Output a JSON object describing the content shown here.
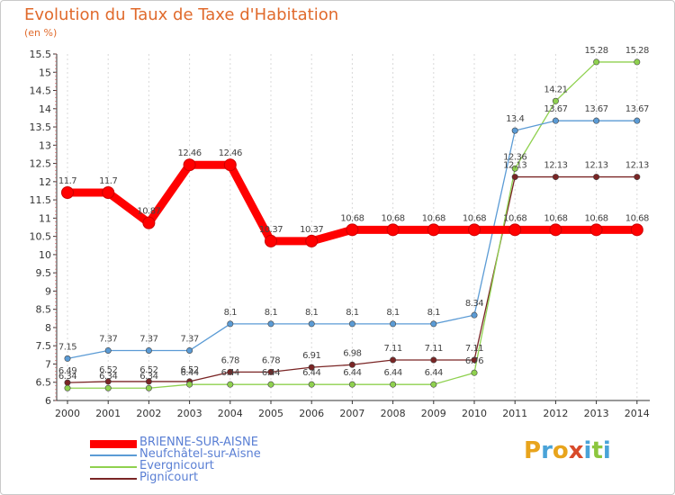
{
  "title": "Evolution du Taux de Taxe d'Habitation",
  "unit_label": "(en %)",
  "brand": {
    "letters": [
      "P",
      "r",
      "o",
      "x",
      "i",
      "t",
      "i"
    ],
    "colors": [
      "#e8a41c",
      "#4aa3d8",
      "#e8a41c",
      "#d84a2a",
      "#4aa3d8",
      "#8cc63e",
      "#4aa3d8"
    ]
  },
  "chart_data": {
    "type": "line",
    "title": "Evolution du Taux de Taxe d'Habitation",
    "ylabel": "(en %)",
    "xlabel": "",
    "x": [
      "2000",
      "2001",
      "2002",
      "2003",
      "2004",
      "2005",
      "2006",
      "2007",
      "2008",
      "2009",
      "2010",
      "2011",
      "2012",
      "2013",
      "2014"
    ],
    "ylim": [
      6,
      15.5
    ],
    "yticks": [
      "6",
      "6.5",
      "7",
      "7.5",
      "8",
      "8.5",
      "9",
      "9.5",
      "10",
      "10.5",
      "11",
      "11.5",
      "12",
      "12.5",
      "13",
      "13.5",
      "14",
      "14.5",
      "15",
      "15.5"
    ],
    "grid": "vertical dashed",
    "legend_position": "bottom-left",
    "series": [
      {
        "name": "BRIENNE-SUR-AISNE",
        "color": "#ff0000",
        "line_width": 9,
        "values": [
          11.7,
          11.7,
          10.87,
          12.46,
          12.46,
          10.37,
          10.37,
          10.68,
          10.68,
          10.68,
          10.68,
          10.68,
          10.68,
          10.68,
          10.68
        ],
        "labels": [
          "11.7",
          "11.7",
          "10.87",
          "12.46",
          "12.46",
          "10.37",
          "10.37",
          "10.68",
          "10.68",
          "10.68",
          "10.68",
          "10.68",
          "10.68",
          "10.68",
          "10.68"
        ]
      },
      {
        "name": "Neufchâtel-sur-Aisne",
        "color": "#5b9bd5",
        "line_width": 1.3,
        "values": [
          7.15,
          7.37,
          7.37,
          7.37,
          8.1,
          8.1,
          8.1,
          8.1,
          8.1,
          8.1,
          8.34,
          13.4,
          13.67,
          13.67,
          13.67
        ],
        "labels": [
          "7.15",
          "7.37",
          "7.37",
          "7.37",
          "8.1",
          "8.1",
          "8.1",
          "8.1",
          "8.1",
          "8.1",
          "8.34",
          "13.4",
          "13.67",
          "13.67",
          "13.67"
        ]
      },
      {
        "name": "Evergnicourt",
        "color": "#8fd14f",
        "line_width": 1.3,
        "values": [
          6.34,
          6.34,
          6.34,
          6.44,
          6.44,
          6.44,
          6.44,
          6.44,
          6.44,
          6.44,
          6.76,
          12.36,
          14.21,
          15.28,
          15.28
        ],
        "labels": [
          "6.34",
          "6.34",
          "6.34",
          "6.44",
          "6.44",
          "6.44",
          "6.44",
          "6.44",
          "6.44",
          "6.44",
          "6.76",
          "12.36",
          "14.21",
          "15.28",
          "15.28"
        ]
      },
      {
        "name": "Pignicourt",
        "color": "#7a2525",
        "line_width": 1.3,
        "values": [
          6.49,
          6.52,
          6.52,
          6.52,
          6.78,
          6.78,
          6.91,
          6.98,
          7.11,
          7.11,
          7.11,
          12.13,
          12.13,
          12.13,
          12.13
        ],
        "labels": [
          "6.49",
          "6.52",
          "6.52",
          "6.52",
          "6.78",
          "6.78",
          "6.91",
          "6.98",
          "7.11",
          "7.11",
          "7.11",
          "12.13",
          "12.13",
          "12.13",
          "12.13"
        ]
      }
    ]
  }
}
